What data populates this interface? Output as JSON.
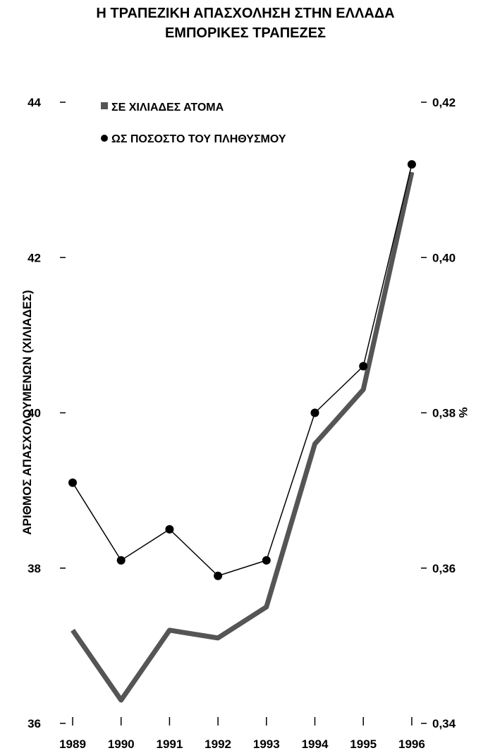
{
  "chart_data": {
    "type": "line",
    "title": "Η ΤΡΑΠΕΖΙΚΗ ΑΠΑΣΧΟΛΗΣΗ ΣΤΗΝ ΕΛΛΑΔΑ",
    "subtitle": "ΕΜΠΟΡΙΚΕΣ ΤΡΑΠΕΖΕΣ",
    "ylabel": "ΑΡΙΘΜΟΣ ΑΠΑΣΧΟΛΟΥΜΕΝΩΝ (ΧΙΛΙΑΔΕΣ)",
    "y2label": "%",
    "x": [
      "1989",
      "1990",
      "1991",
      "1992",
      "1993",
      "1994",
      "1995",
      "1996"
    ],
    "ylim": [
      36,
      44
    ],
    "y2lim": [
      0.34,
      0.42
    ],
    "yticks": [
      "36",
      "38",
      "40",
      "42",
      "44"
    ],
    "y2ticks": [
      "0,34",
      "0,36",
      "0,38",
      "0,40",
      "0,42"
    ],
    "legend_position": "top-left",
    "grid": false,
    "series": [
      {
        "name": "ΣΕ ΧΙΛΙΑΔΕΣ ΑΤΟΜΑ",
        "axis": "left",
        "style": "thick-line",
        "color": "#555555",
        "values": [
          37.2,
          36.3,
          37.2,
          37.1,
          37.5,
          39.6,
          40.3,
          43.1
        ]
      },
      {
        "name": "ΩΣ ΠΟΣΟΣΤΟ ΤΟΥ ΠΛΗΘΥΣΜΟΥ",
        "axis": "right",
        "style": "line-with-markers",
        "color": "#000000",
        "values": [
          0.371,
          0.361,
          0.365,
          0.359,
          0.361,
          0.38,
          0.386,
          0.412
        ]
      }
    ]
  }
}
